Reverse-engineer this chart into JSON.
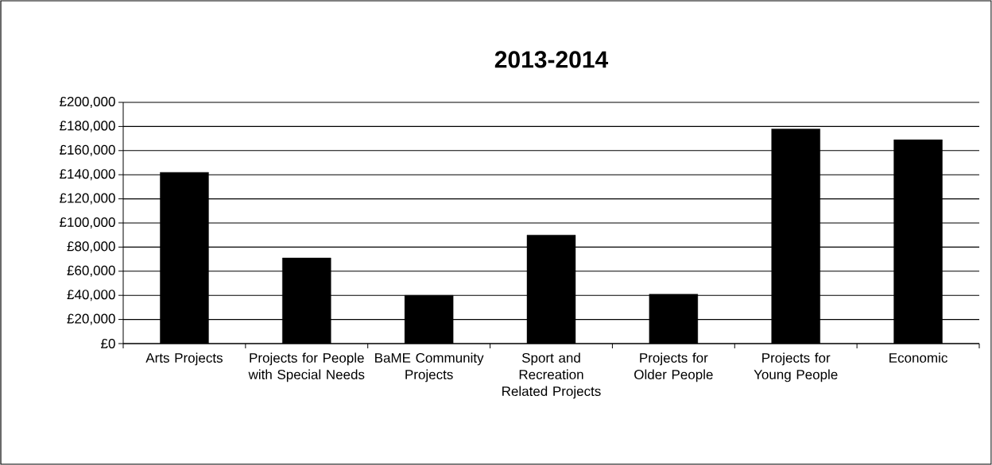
{
  "chart_data": {
    "type": "bar",
    "title": "2013-2014",
    "categories": [
      "Arts Projects",
      "Projects for People with Special Needs",
      "BaME Community Projects",
      "Sport and Recreation Related Projects",
      "Projects for Older People",
      "Projects for Young People",
      "Economic"
    ],
    "values": [
      142000,
      71000,
      40000,
      90000,
      41000,
      178000,
      169000
    ],
    "color": "#000000",
    "ylim": [
      0,
      200000
    ],
    "yticks": [
      {
        "value": 0,
        "label": "£0"
      },
      {
        "value": 20000,
        "label": "£20,000"
      },
      {
        "value": 40000,
        "label": "£40,000"
      },
      {
        "value": 60000,
        "label": "£60,000"
      },
      {
        "value": 80000,
        "label": "£80,000"
      },
      {
        "value": 100000,
        "label": "£100,000"
      },
      {
        "value": 120000,
        "label": "£120,000"
      },
      {
        "value": 140000,
        "label": "£140,000"
      },
      {
        "value": 160000,
        "label": "£160,000"
      },
      {
        "value": 180000,
        "label": "£180,000"
      },
      {
        "value": 200000,
        "label": "£200,000"
      }
    ],
    "grid": "y"
  }
}
